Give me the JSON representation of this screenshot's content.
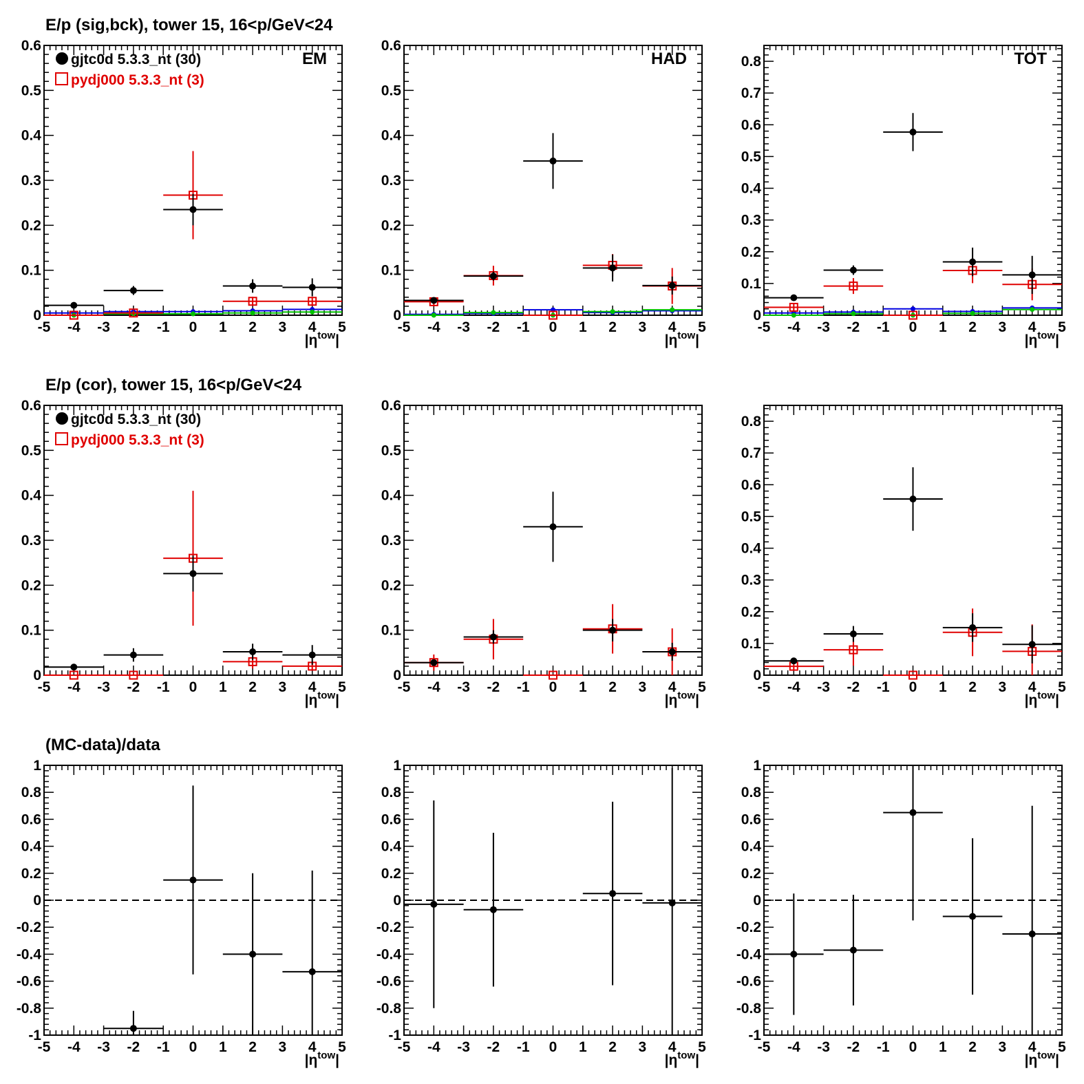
{
  "colors": {
    "data": "#000000",
    "mc": "#e00000",
    "blue": "#0000e0",
    "green": "#00c000",
    "axis": "#000000"
  },
  "row_titles": [
    "E/p (sig,bck), tower 15, 16<p/GeV<24",
    "E/p (cor), tower 15, 16<p/GeV<24",
    "(MC-data)/data"
  ],
  "legend": {
    "data_label": "gjtc0d 5.3.3_nt (30)",
    "mc_label": "pydj000 5.3.3_nt (3)",
    "data_marker": "filled-circle",
    "mc_marker": "open-square"
  },
  "x_axis_label": {
    "base": "|η",
    "sup": "tow",
    "close": "|"
  },
  "x_ticks": [
    "-5",
    "-4",
    "-3",
    "-2",
    "-1",
    "0",
    "1",
    "2",
    "3",
    "4",
    "5"
  ],
  "chart_data": [
    {
      "type": "scatter",
      "panel": "row1-EM",
      "corner_label": "EM",
      "xlim": [
        -5,
        5
      ],
      "ylim": [
        0,
        0.6
      ],
      "y_ticks": [
        "0",
        "0.1",
        "0.2",
        "0.3",
        "0.4",
        "0.5",
        "0.6"
      ],
      "series": [
        {
          "name": "gjtc0d 5.3.3_nt (30)",
          "color": "data",
          "marker": "dot",
          "points": [
            [
              -4,
              0.022,
              0.005
            ],
            [
              -2,
              0.055,
              0.01
            ],
            [
              0,
              0.235,
              0.035
            ],
            [
              2,
              0.065,
              0.015
            ],
            [
              4,
              0.062,
              0.02
            ]
          ]
        },
        {
          "name": "pydj000 5.3.3_nt (3)",
          "color": "mc",
          "marker": "square",
          "points": [
            [
              -4,
              0.0,
              0.003
            ],
            [
              -2,
              0.005,
              0.005
            ],
            [
              0,
              0.267,
              0.098
            ],
            [
              2,
              0.031,
              0.01
            ],
            [
              4,
              0.031,
              0.01
            ]
          ]
        },
        {
          "color": "blue",
          "marker": "small",
          "points": [
            [
              -4,
              0.005,
              0.003
            ],
            [
              -2,
              0.008,
              0.003
            ],
            [
              0,
              0.008,
              0.003
            ],
            [
              2,
              0.01,
              0.003
            ],
            [
              4,
              0.013,
              0.003
            ]
          ]
        },
        {
          "color": "green",
          "marker": "small",
          "points": [
            [
              -4,
              0.0,
              0.002
            ],
            [
              -2,
              0.003,
              0.002
            ],
            [
              0,
              0.003,
              0.002
            ],
            [
              2,
              0.005,
              0.002
            ],
            [
              4,
              0.007,
              0.002
            ]
          ]
        }
      ]
    },
    {
      "type": "scatter",
      "panel": "row1-HAD",
      "corner_label": "HAD",
      "xlim": [
        -5,
        5
      ],
      "ylim": [
        0,
        0.6
      ],
      "y_ticks": [
        "0",
        "0.1",
        "0.2",
        "0.3",
        "0.4",
        "0.5",
        "0.6"
      ],
      "series": [
        {
          "name": "gjtc0d 5.3.3_nt (30)",
          "color": "data",
          "marker": "dot",
          "points": [
            [
              -4,
              0.033,
              0.005
            ],
            [
              -2,
              0.087,
              0.01
            ],
            [
              0,
              0.343,
              0.062
            ],
            [
              2,
              0.105,
              0.03
            ],
            [
              4,
              0.066,
              0.02
            ]
          ]
        },
        {
          "name": "pydj000 5.3.3_nt (3)",
          "color": "mc",
          "marker": "square",
          "points": [
            [
              -4,
              0.03,
              0.01
            ],
            [
              -2,
              0.088,
              0.022
            ],
            [
              0,
              0.0,
              0.0
            ],
            [
              2,
              0.111,
              0.025
            ],
            [
              4,
              0.065,
              0.04
            ]
          ]
        },
        {
          "color": "blue",
          "marker": "small",
          "points": [
            [
              -4,
              0.002,
              0.002
            ],
            [
              -2,
              0.004,
              0.002
            ],
            [
              0,
              0.012,
              0.003
            ],
            [
              2,
              0.006,
              0.002
            ],
            [
              4,
              0.01,
              0.003
            ]
          ]
        },
        {
          "color": "green",
          "marker": "small",
          "points": [
            [
              -4,
              0.0,
              0.002
            ],
            [
              -2,
              0.006,
              0.003
            ],
            [
              0,
              0.0,
              0.002
            ],
            [
              2,
              0.008,
              0.003
            ],
            [
              4,
              0.012,
              0.004
            ]
          ]
        }
      ]
    },
    {
      "type": "scatter",
      "panel": "row1-TOT",
      "corner_label": "TOT",
      "xlim": [
        -5,
        5
      ],
      "ylim": [
        0,
        0.85
      ],
      "y_ticks": [
        "0",
        "0.1",
        "0.2",
        "0.3",
        "0.4",
        "0.5",
        "0.6",
        "0.7",
        "0.8"
      ],
      "series": [
        {
          "name": "gjtc0d 5.3.3_nt (30)",
          "color": "data",
          "marker": "dot",
          "points": [
            [
              -4,
              0.055,
              0.008
            ],
            [
              -2,
              0.142,
              0.015
            ],
            [
              0,
              0.577,
              0.06
            ],
            [
              2,
              0.168,
              0.045
            ],
            [
              4,
              0.127,
              0.06
            ]
          ]
        },
        {
          "name": "pydj000 5.3.3_nt (3)",
          "color": "mc",
          "marker": "square",
          "points": [
            [
              -4,
              0.025,
              0.012
            ],
            [
              -2,
              0.092,
              0.025
            ],
            [
              0,
              0.0,
              0.0
            ],
            [
              2,
              0.141,
              0.04
            ],
            [
              4,
              0.097,
              0.05
            ]
          ]
        },
        {
          "color": "blue",
          "marker": "small",
          "points": [
            [
              -4,
              0.007,
              0.003
            ],
            [
              -2,
              0.01,
              0.003
            ],
            [
              0,
              0.02,
              0.004
            ],
            [
              2,
              0.012,
              0.003
            ],
            [
              4,
              0.023,
              0.004
            ]
          ]
        },
        {
          "color": "green",
          "marker": "small",
          "points": [
            [
              -4,
              0.0,
              0.002
            ],
            [
              -2,
              0.005,
              0.003
            ],
            [
              0,
              0.0,
              0.002
            ],
            [
              2,
              0.006,
              0.003
            ],
            [
              4,
              0.018,
              0.005
            ]
          ]
        }
      ]
    },
    {
      "type": "scatter",
      "panel": "row2-EM",
      "xlim": [
        -5,
        5
      ],
      "ylim": [
        0,
        0.6
      ],
      "y_ticks": [
        "0",
        "0.1",
        "0.2",
        "0.3",
        "0.4",
        "0.5",
        "0.6"
      ],
      "series": [
        {
          "name": "gjtc0d 5.3.3_nt (30)",
          "color": "data",
          "marker": "dot",
          "points": [
            [
              -4,
              0.018,
              0.004
            ],
            [
              -2,
              0.045,
              0.015
            ],
            [
              0,
              0.226,
              0.04
            ],
            [
              2,
              0.052,
              0.018
            ],
            [
              4,
              0.045,
              0.022
            ]
          ]
        },
        {
          "name": "pydj000 5.3.3_nt (3)",
          "color": "mc",
          "marker": "square",
          "points": [
            [
              -4,
              0.0,
              0.0
            ],
            [
              -2,
              0.0,
              0.005
            ],
            [
              0,
              0.26,
              0.15
            ],
            [
              2,
              0.03,
              0.015
            ],
            [
              4,
              0.02,
              0.01
            ]
          ]
        }
      ]
    },
    {
      "type": "scatter",
      "panel": "row2-HAD",
      "xlim": [
        -5,
        5
      ],
      "ylim": [
        0,
        0.6
      ],
      "y_ticks": [
        "0",
        "0.1",
        "0.2",
        "0.3",
        "0.4",
        "0.5",
        "0.6"
      ],
      "series": [
        {
          "name": "gjtc0d 5.3.3_nt (30)",
          "color": "data",
          "marker": "dot",
          "points": [
            [
              -4,
              0.028,
              0.005
            ],
            [
              -2,
              0.085,
              0.015
            ],
            [
              0,
              0.33,
              0.078
            ],
            [
              2,
              0.1,
              0.025
            ],
            [
              4,
              0.052,
              0.02
            ]
          ]
        },
        {
          "name": "pydj000 5.3.3_nt (3)",
          "color": "mc",
          "marker": "square",
          "points": [
            [
              -4,
              0.028,
              0.018
            ],
            [
              -2,
              0.08,
              0.045
            ],
            [
              0,
              0.0,
              0.0
            ],
            [
              2,
              0.103,
              0.055
            ],
            [
              4,
              0.052,
              0.052
            ]
          ]
        }
      ]
    },
    {
      "type": "scatter",
      "panel": "row2-TOT",
      "xlim": [
        -5,
        5
      ],
      "ylim": [
        0,
        0.85
      ],
      "y_ticks": [
        "0",
        "0.1",
        "0.2",
        "0.3",
        "0.4",
        "0.5",
        "0.6",
        "0.7",
        "0.8"
      ],
      "series": [
        {
          "name": "gjtc0d 5.3.3_nt (30)",
          "color": "data",
          "marker": "dot",
          "points": [
            [
              -4,
              0.045,
              0.01
            ],
            [
              -2,
              0.13,
              0.025
            ],
            [
              0,
              0.555,
              0.1
            ],
            [
              2,
              0.15,
              0.045
            ],
            [
              4,
              0.097,
              0.06
            ]
          ]
        },
        {
          "name": "pydj000 5.3.3_nt (3)",
          "color": "mc",
          "marker": "square",
          "points": [
            [
              -4,
              0.028,
              0.013
            ],
            [
              -2,
              0.08,
              0.05
            ],
            [
              0,
              0.0,
              0.0
            ],
            [
              2,
              0.135,
              0.075
            ],
            [
              4,
              0.075,
              0.085
            ]
          ]
        }
      ]
    },
    {
      "type": "scatter",
      "panel": "row3-EM",
      "xlim": [
        -5,
        5
      ],
      "ylim": [
        -1,
        1
      ],
      "reference_line": 0,
      "y_ticks": [
        "-1",
        "-0.8",
        "-0.6",
        "-0.4",
        "-0.2",
        "0",
        "0.2",
        "0.4",
        "0.6",
        "0.8",
        "1"
      ],
      "series": [
        {
          "color": "data",
          "marker": "dot",
          "points": [
            [
              -2,
              -0.95,
              0.13
            ],
            [
              0,
              0.15,
              0.7
            ],
            [
              2,
              -0.4,
              0.6
            ],
            [
              4,
              -0.53,
              0.75
            ]
          ]
        }
      ]
    },
    {
      "type": "scatter",
      "panel": "row3-HAD",
      "xlim": [
        -5,
        5
      ],
      "ylim": [
        -1,
        1
      ],
      "reference_line": 0,
      "y_ticks": [
        "-1",
        "-0.8",
        "-0.6",
        "-0.4",
        "-0.2",
        "0",
        "0.2",
        "0.4",
        "0.6",
        "0.8",
        "1"
      ],
      "series": [
        {
          "color": "data",
          "marker": "dot",
          "points": [
            [
              -4,
              -0.03,
              0.77
            ],
            [
              -2,
              -0.07,
              0.57
            ],
            [
              2,
              0.05,
              0.68
            ],
            [
              4,
              -0.02,
              1.0
            ]
          ]
        }
      ]
    },
    {
      "type": "scatter",
      "panel": "row3-TOT",
      "xlim": [
        -5,
        5
      ],
      "ylim": [
        -1,
        1
      ],
      "reference_line": 0,
      "y_ticks": [
        "-1",
        "-0.8",
        "-0.6",
        "-0.4",
        "-0.2",
        "0",
        "0.2",
        "0.4",
        "0.6",
        "0.8",
        "1"
      ],
      "series": [
        {
          "color": "data",
          "marker": "dot",
          "points": [
            [
              -4,
              -0.4,
              0.45
            ],
            [
              -2,
              -0.37,
              0.41
            ],
            [
              0,
              0.65,
              0.8
            ],
            [
              2,
              -0.12,
              0.58
            ],
            [
              4,
              -0.25,
              0.95
            ]
          ]
        }
      ]
    }
  ]
}
